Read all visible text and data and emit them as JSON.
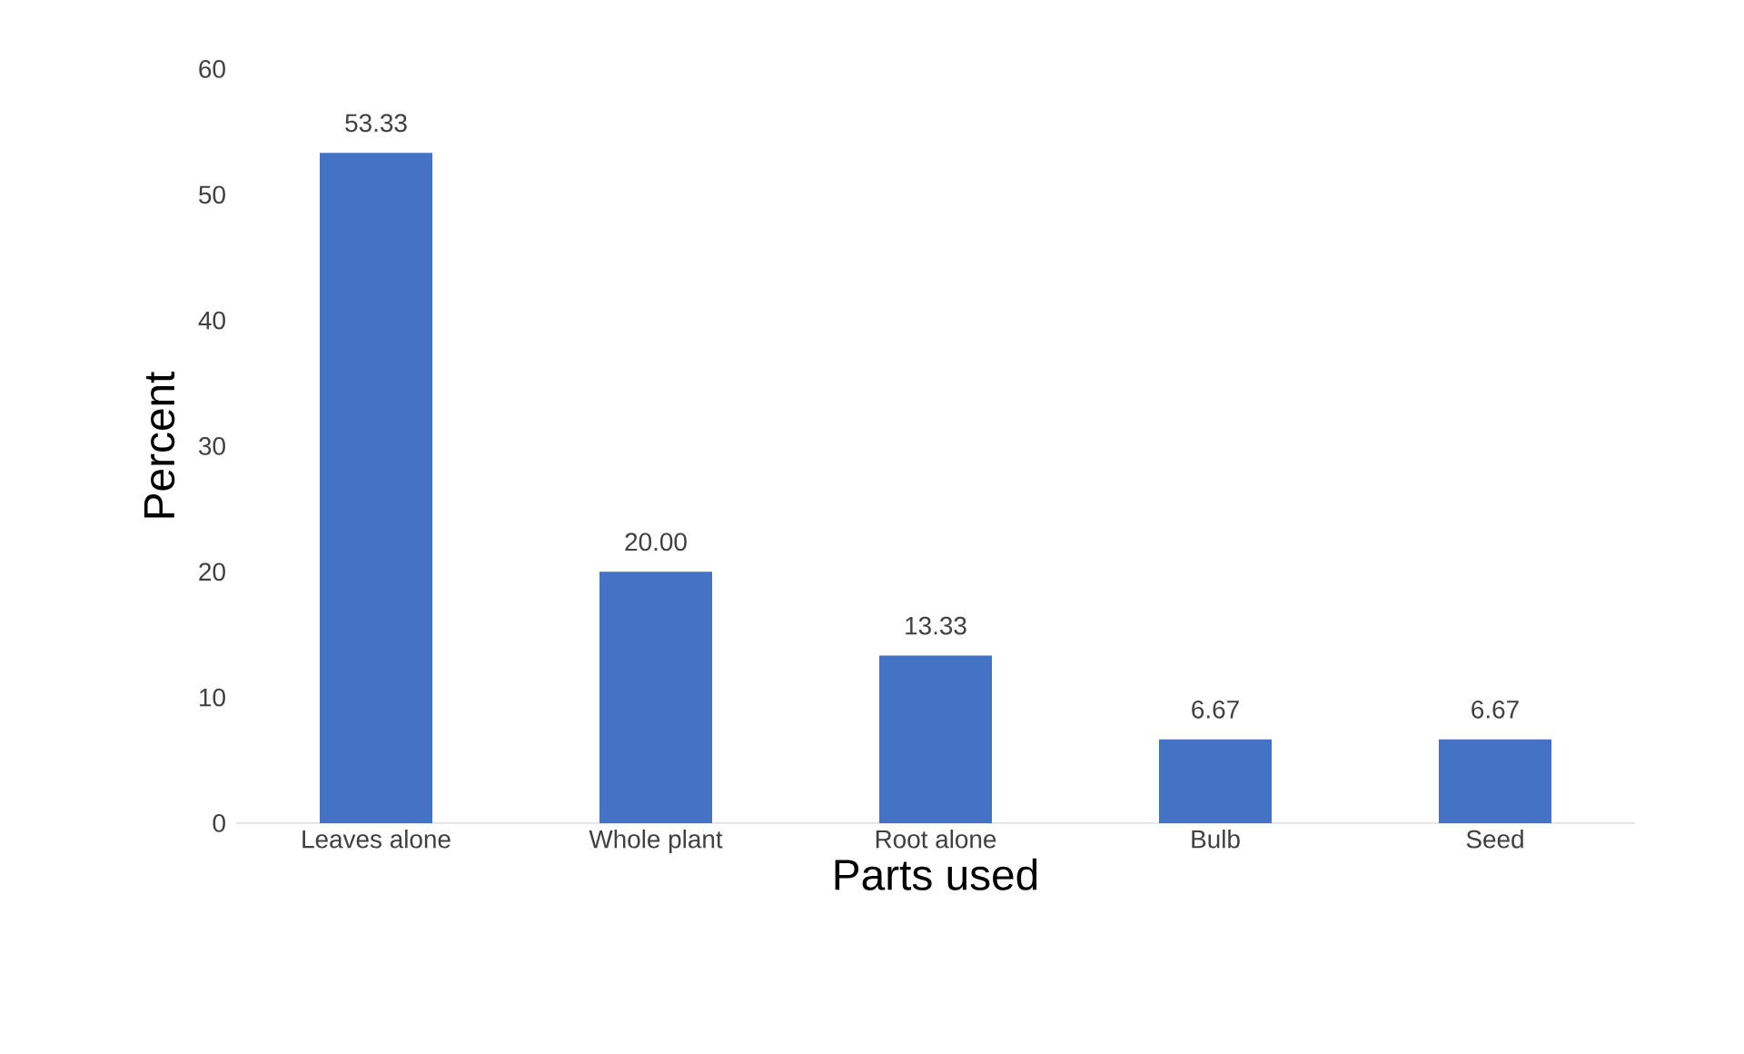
{
  "chart_data": {
    "type": "bar",
    "xlabel": "Parts used",
    "ylabel": "Percent",
    "categories": [
      "Leaves alone",
      "Whole plant",
      "Root alone",
      "Bulb",
      "Seed"
    ],
    "values": [
      53.33,
      20,
      13.33,
      6.67,
      6.67
    ],
    "value_labels": [
      "53.33",
      "20.00",
      "13.33",
      "6.67",
      "6.67"
    ],
    "color": "#4472c4",
    "ylim": [
      0,
      60
    ],
    "yticks": [
      0,
      10,
      20,
      30,
      40,
      50,
      60
    ],
    "grid": false
  }
}
